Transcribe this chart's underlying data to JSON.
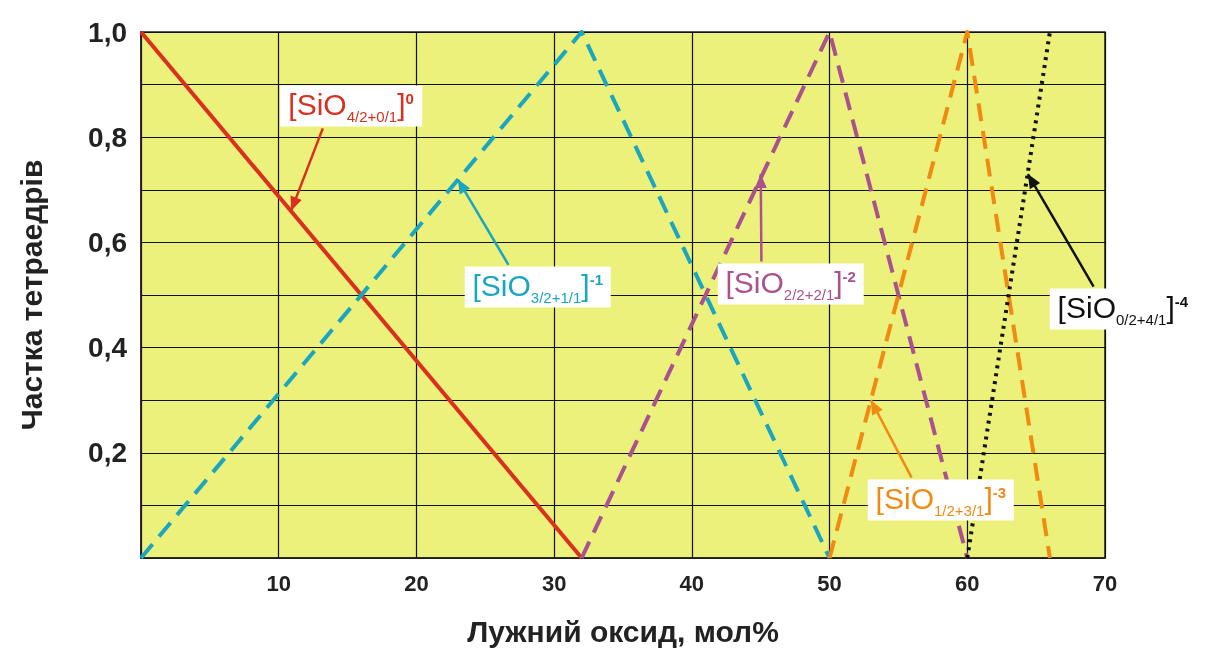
{
  "chart_data": {
    "type": "line",
    "xlabel": "Лужний оксид, мол%",
    "ylabel": "Частка тетраедрів",
    "xlim": [
      0,
      70
    ],
    "xticks": [
      {
        "value": 0,
        "label": null
      },
      10,
      20,
      30,
      40,
      50,
      60,
      70
    ],
    "ylim": [
      0,
      1
    ],
    "yticks": [
      {
        "value": 0,
        "label": null
      },
      {
        "value": 0.1,
        "label": null
      },
      {
        "value": 0.2,
        "label": "0,2"
      },
      {
        "value": 0.3,
        "label": null
      },
      {
        "value": 0.4,
        "label": "0,4"
      },
      {
        "value": 0.5,
        "label": null
      },
      {
        "value": 0.6,
        "label": "0,6"
      },
      {
        "value": 0.7,
        "label": null
      },
      {
        "value": 0.8,
        "label": "0,8"
      },
      {
        "value": 0.9,
        "label": null
      },
      {
        "value": 1,
        "label": "1,0"
      }
    ],
    "grid": true,
    "marker": "none",
    "series": [
      {
        "color": "#d9301f",
        "line_style": "solid",
        "x": [
          0,
          32
        ],
        "values": [
          1,
          0
        ]
      },
      {
        "color": "#1aa5c0",
        "line_style": "dashed",
        "x": [
          0,
          32,
          50
        ],
        "values": [
          0,
          1,
          0
        ]
      },
      {
        "color": "#a9528f",
        "line_style": "dashed",
        "x": [
          32,
          50,
          60
        ],
        "values": [
          0,
          1,
          0
        ]
      },
      {
        "color": "#f08a12",
        "line_style": "dashed",
        "x": [
          50,
          60,
          66
        ],
        "values": [
          0,
          1,
          0
        ]
      },
      {
        "color": "#111111",
        "line_style": "dotted",
        "x": [
          60,
          66
        ],
        "values": [
          0,
          1
        ]
      }
    ],
    "annotations": [
      {
        "text": "[SiO$_{4/2+0/1}$]$^{0}$",
        "x": 10.9,
        "y": 0.66
      },
      {
        "text": "[SiO$_{3/2+1/1}$]$^{-1}$",
        "x": 23,
        "y": 0.72
      },
      {
        "text": "[SiO$_{2/2+2/1}$]$^{-2}$",
        "x": 45,
        "y": 0.73
      },
      {
        "text": "[SiO$_{1/2+3/1}$]$^{-3}$",
        "x": 53,
        "y": 0.3
      },
      {
        "text": "[SiO$_{0/2+4/1}$]$^{-4}$",
        "x": 64.4,
        "y": 0.73
      }
    ]
  }
}
